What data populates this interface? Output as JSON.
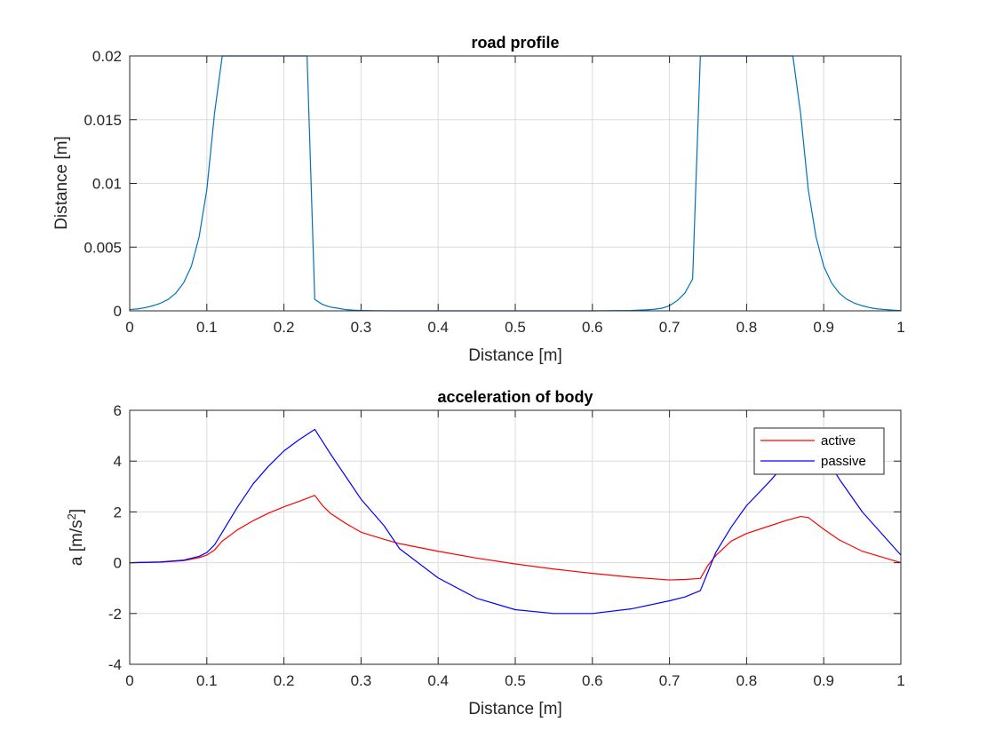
{
  "chart_data": [
    {
      "type": "line",
      "title": "road profile",
      "xlabel": "Distance [m]",
      "ylabel": "Distance [m]",
      "xlim": [
        0,
        1
      ],
      "ylim": [
        0,
        0.02
      ],
      "xticks": [
        0,
        0.1,
        0.2,
        0.3,
        0.4,
        0.5,
        0.6,
        0.7,
        0.8,
        0.9,
        1
      ],
      "xtick_labels": [
        "0",
        "0.1",
        "0.2",
        "0.3",
        "0.4",
        "0.5",
        "0.6",
        "0.7",
        "0.8",
        "0.9",
        "1"
      ],
      "yticks": [
        0,
        0.005,
        0.01,
        0.015,
        0.02
      ],
      "ytick_labels": [
        "0",
        "0.005",
        "0.01",
        "0.015",
        "0.02"
      ],
      "grid": true,
      "series": [
        {
          "color": "#0072bd",
          "x": [
            0,
            0.01,
            0.02,
            0.03,
            0.04,
            0.05,
            0.06,
            0.07,
            0.08,
            0.09,
            0.1,
            0.11,
            0.12,
            0.13,
            0.14,
            0.15,
            0.16,
            0.17,
            0.18,
            0.19,
            0.2,
            0.21,
            0.22,
            0.23,
            0.24,
            0.25,
            0.26,
            0.27,
            0.28,
            0.29,
            0.3,
            0.32,
            0.35,
            0.4,
            0.5,
            0.6,
            0.65,
            0.67,
            0.68,
            0.69,
            0.7,
            0.71,
            0.72,
            0.73,
            0.74,
            0.75,
            0.76,
            0.77,
            0.78,
            0.79,
            0.8,
            0.81,
            0.82,
            0.83,
            0.84,
            0.85,
            0.86,
            0.87,
            0.88,
            0.89,
            0.9,
            0.91,
            0.92,
            0.93,
            0.94,
            0.95,
            0.96,
            0.97,
            0.98,
            0.99,
            1
          ],
          "y": [
            0.0001,
            0.00015,
            0.00025,
            0.0004,
            0.0006,
            0.0009,
            0.0014,
            0.0022,
            0.0035,
            0.0058,
            0.0095,
            0.0155,
            0.02,
            0.02,
            0.02,
            0.02,
            0.02,
            0.02,
            0.02,
            0.02,
            0.02,
            0.02,
            0.02,
            0.02,
            0.0009,
            0.0005,
            0.0003,
            0.0002,
            0.0001,
            5e-05,
            3e-05,
            1e-05,
            0,
            0,
            0,
            0,
            3e-05,
            8e-05,
            0.00012,
            0.0002,
            0.0004,
            0.0008,
            0.0014,
            0.0025,
            0.02,
            0.02,
            0.02,
            0.02,
            0.02,
            0.02,
            0.02,
            0.02,
            0.02,
            0.02,
            0.02,
            0.02,
            0.02,
            0.0155,
            0.0095,
            0.0058,
            0.0035,
            0.0022,
            0.0014,
            0.0009,
            0.0006,
            0.0004,
            0.00025,
            0.00015,
            0.0001,
            5e-05,
            2e-05
          ]
        }
      ]
    },
    {
      "type": "line",
      "title": "acceleration of body",
      "xlabel": "Distance [m]",
      "ylabel": "a [m/s",
      "ylabel_sup": "2",
      "ylabel_end": "]",
      "xlim": [
        0,
        1
      ],
      "ylim": [
        -4,
        6
      ],
      "xticks": [
        0,
        0.1,
        0.2,
        0.3,
        0.4,
        0.5,
        0.6,
        0.7,
        0.8,
        0.9,
        1
      ],
      "xtick_labels": [
        "0",
        "0.1",
        "0.2",
        "0.3",
        "0.4",
        "0.5",
        "0.6",
        "0.7",
        "0.8",
        "0.9",
        "1"
      ],
      "yticks": [
        -4,
        -2,
        0,
        2,
        4,
        6
      ],
      "ytick_labels": [
        "-4",
        "-2",
        "0",
        "2",
        "4",
        "6"
      ],
      "grid": true,
      "legend": "top-right",
      "series": [
        {
          "name": "active",
          "color": "#ff0000",
          "x": [
            0,
            0.04,
            0.07,
            0.09,
            0.1,
            0.11,
            0.12,
            0.14,
            0.16,
            0.18,
            0.2,
            0.22,
            0.24,
            0.25,
            0.26,
            0.28,
            0.3,
            0.33,
            0.35,
            0.4,
            0.45,
            0.5,
            0.55,
            0.6,
            0.65,
            0.7,
            0.72,
            0.74,
            0.75,
            0.76,
            0.78,
            0.8,
            0.83,
            0.85,
            0.87,
            0.88,
            0.9,
            0.92,
            0.95,
            1
          ],
          "y": [
            0,
            0.02,
            0.08,
            0.2,
            0.3,
            0.5,
            0.85,
            1.3,
            1.65,
            1.95,
            2.2,
            2.42,
            2.65,
            2.25,
            1.95,
            1.55,
            1.2,
            0.92,
            0.75,
            0.45,
            0.18,
            -0.05,
            -0.25,
            -0.42,
            -0.57,
            -0.68,
            -0.66,
            -0.62,
            -0.1,
            0.28,
            0.85,
            1.15,
            1.45,
            1.65,
            1.82,
            1.78,
            1.32,
            0.9,
            0.45,
            0
          ]
        },
        {
          "name": "passive",
          "color": "#0000ff",
          "x": [
            0,
            0.04,
            0.07,
            0.09,
            0.1,
            0.11,
            0.12,
            0.14,
            0.16,
            0.18,
            0.2,
            0.22,
            0.24,
            0.26,
            0.28,
            0.3,
            0.33,
            0.35,
            0.4,
            0.45,
            0.5,
            0.55,
            0.6,
            0.65,
            0.7,
            0.72,
            0.74,
            0.75,
            0.76,
            0.78,
            0.8,
            0.83,
            0.85,
            0.87,
            0.88,
            0.9,
            0.92,
            0.95,
            1
          ],
          "y": [
            0,
            0.03,
            0.1,
            0.25,
            0.4,
            0.7,
            1.2,
            2.2,
            3.1,
            3.8,
            4.4,
            4.85,
            5.25,
            4.3,
            3.4,
            2.5,
            1.45,
            0.55,
            -0.6,
            -1.4,
            -1.85,
            -2.0,
            -2.0,
            -1.82,
            -1.5,
            -1.35,
            -1.1,
            -0.35,
            0.4,
            1.4,
            2.25,
            3.2,
            3.9,
            4.35,
            4.45,
            4.3,
            3.3,
            2.0,
            0.3
          ]
        }
      ]
    }
  ]
}
